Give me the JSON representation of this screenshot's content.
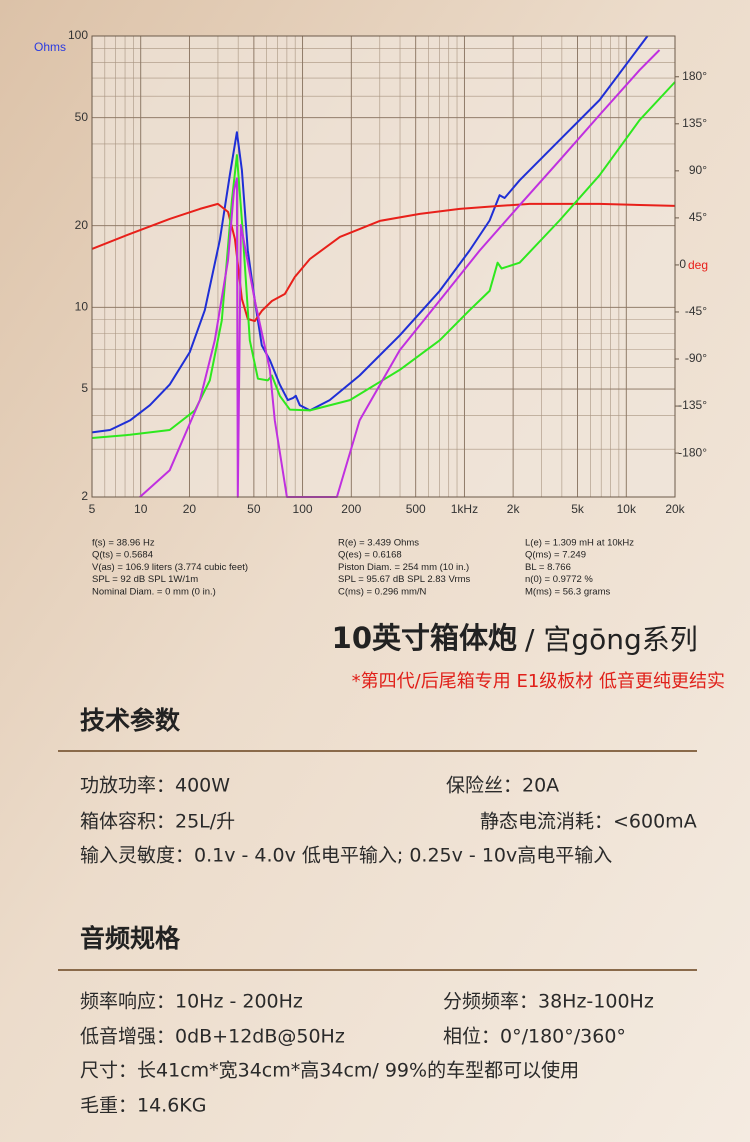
{
  "chart_data": {
    "type": "line",
    "ylabel": "Ohms",
    "y2_unit": "deg",
    "xscale": "log",
    "yscale": "log",
    "grid": true,
    "xlim": [
      5,
      20000
    ],
    "ylim": [
      2,
      100
    ],
    "y2lim": [
      -222,
      219
    ],
    "xticks": [
      5,
      10,
      20,
      50,
      100,
      200,
      500,
      {
        "value": 1000,
        "label": "1kHz"
      },
      {
        "value": 2000,
        "label": "2k"
      },
      {
        "value": 5000,
        "label": "5k"
      },
      {
        "value": 10000,
        "label": "10k"
      },
      {
        "value": 20000,
        "label": "20k"
      }
    ],
    "yticks": [
      2,
      5,
      10,
      20,
      50,
      100
    ],
    "y2ticks": [
      {
        "value": 180,
        "label": "180°"
      },
      {
        "value": 135,
        "label": "135°"
      },
      {
        "value": 90,
        "label": "90°"
      },
      {
        "value": 45,
        "label": "45°"
      },
      {
        "value": 0,
        "label": "0"
      },
      {
        "value": -45,
        "label": "-45°"
      },
      {
        "value": -90,
        "label": "-90°"
      },
      {
        "value": -135,
        "label": "-135°"
      },
      {
        "value": -180,
        "label": "-180°"
      }
    ],
    "series": [
      {
        "color": "#1f2fd6",
        "axis": "y",
        "x": [
          5,
          6.46,
          8.58,
          11.4,
          15.1,
          20.1,
          24.9,
          30.8,
          35.5,
          39.3,
          42.2,
          45.9,
          50.7,
          56.0,
          62.8,
          72.3,
          81.1,
          87.1,
          90.8,
          96.1,
          111,
          147,
          225,
          398,
          703,
          1077,
          1431,
          1650,
          1771,
          2193,
          3870,
          6840,
          13520
        ],
        "values": [
          3.46,
          3.53,
          3.83,
          4.36,
          5.19,
          6.84,
          9.76,
          17.7,
          30.7,
          44.2,
          32.0,
          16.2,
          10.6,
          7.24,
          6.39,
          5.19,
          4.55,
          4.63,
          4.72,
          4.36,
          4.17,
          4.55,
          5.61,
          7.88,
          11.5,
          16.2,
          20.9,
          25.9,
          25.3,
          29.4,
          41.3,
          58.1,
          100
        ]
      },
      {
        "color": "#e8201a",
        "axis": "y2",
        "x": [
          5,
          8.58,
          15.1,
          23.2,
          30.0,
          34.6,
          38.2,
          42.2,
          45.9,
          50.7,
          56.0,
          64.6,
          77.7,
          89.5,
          111,
          170,
          300,
          530,
          935,
          1650,
          2530,
          6840,
          20000
        ],
        "values": [
          15.3,
          29.7,
          44,
          53.6,
          58.4,
          50.7,
          24.9,
          -32.6,
          -51.7,
          -53.6,
          -44,
          -34.5,
          -27.8,
          -11.5,
          5.7,
          26.8,
          42.1,
          48.8,
          53.6,
          56.5,
          58.4,
          58.4,
          56.5
        ]
      },
      {
        "color": "#2ee81e",
        "axis": "y",
        "x": [
          5,
          8.58,
          15.1,
          21.6,
          26.7,
          31.7,
          36.6,
          39.3,
          42.2,
          47.2,
          53.0,
          61.0,
          64.6,
          72.3,
          83.4,
          111,
          196,
          398,
          703,
          1077,
          1431,
          1603,
          1698,
          2193,
          3870,
          6840,
          12080,
          20000
        ],
        "values": [
          3.3,
          3.39,
          3.53,
          4.17,
          5.38,
          8.95,
          24.8,
          36.4,
          20.9,
          7.56,
          5.46,
          5.38,
          5.61,
          4.72,
          4.2,
          4.17,
          4.55,
          5.88,
          7.56,
          9.76,
          11.5,
          14.6,
          13.9,
          14.6,
          20.9,
          30.7,
          49.0,
          67.7
        ]
      },
      {
        "color": "#c030e0",
        "axis": "y",
        "x": [
          9.89,
          15.1,
          23.2,
          28.7,
          34.6,
          37.7,
          39.3,
          39.8,
          41.6,
          50.7,
          62.8,
          67.4,
          80.0,
          163,
          225,
          398,
          703,
          1242,
          2193,
          3870,
          6840,
          12080,
          16040
        ],
        "values": [
          2,
          2.51,
          4.55,
          7.56,
          14.9,
          27.0,
          29.9,
          2,
          20.1,
          10.6,
          5.88,
          3.83,
          2,
          2,
          3.83,
          6.95,
          10.6,
          16.2,
          23.8,
          34.8,
          51.2,
          74.9,
          88.8
        ]
      }
    ],
    "params": [
      [
        "f(s) = 38.96 Hz",
        "Q(ts) = 0.5684",
        "V(as) = 106.9 liters  (3.774 cubic feet)",
        "SPL = 92 dB SPL 1W/1m",
        "Nominal Diam. = 0 mm (0 in.)"
      ],
      [
        "R(e) = 3.439 Ohms",
        "Q(es) = 0.6168",
        "Piston Diam. = 254 mm (10 in.)",
        "SPL = 95.67 dB SPL 2.83 Vrms",
        "C(ms) = 0.296 mm/N"
      ],
      [
        "L(e) = 1.309 mH at 10kHz",
        "Q(ms) = 7.249",
        "BL = 8.766",
        "n(0) = 0.9772 %",
        "M(ms) = 56.3 grams"
      ]
    ]
  },
  "header": {
    "title": "10英寸箱体炮",
    "series_name": "/ 宫gōng系列",
    "note": "*第四代/后尾箱专用 E1级板材 低音更纯更结实"
  },
  "sections": [
    {
      "heading": "技术参数",
      "rows": [
        [
          "功放功率：400W",
          "保险丝：20A"
        ],
        [
          "箱体容积：25L/升",
          "静态电流消耗：<600mA"
        ],
        [
          "输入灵敏度：0.1v - 4.0v 低电平输入; 0.25v - 10v高电平输入"
        ]
      ]
    },
    {
      "heading": "音频规格",
      "rows": [
        [
          "频率响应：10Hz - 200Hz",
          "分频频率：38Hz-100Hz"
        ],
        [
          "低音增强：0dB+12dB@50Hz",
          "相位：0°/180°/360°"
        ],
        [
          "尺寸：长41cm*宽34cm*高34cm/  99%的车型都可以使用"
        ],
        [
          "毛重：14.6KG"
        ]
      ]
    }
  ]
}
